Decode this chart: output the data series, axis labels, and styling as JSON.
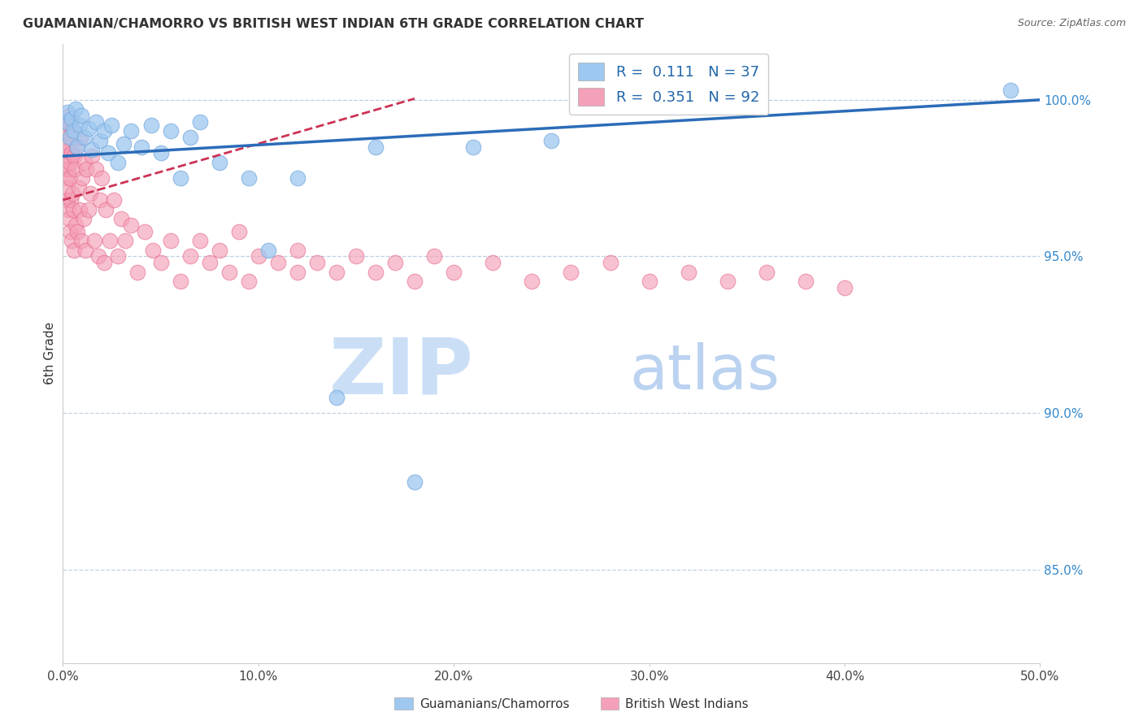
{
  "title": "GUAMANIAN/CHAMORRO VS BRITISH WEST INDIAN 6TH GRADE CORRELATION CHART",
  "source": "Source: ZipAtlas.com",
  "ylabel": "6th Grade",
  "x_min": 0.0,
  "x_max": 50.0,
  "y_min": 82.0,
  "y_max": 101.8,
  "x_ticks": [
    0.0,
    10.0,
    20.0,
    30.0,
    40.0,
    50.0
  ],
  "y_ticks_right": [
    85.0,
    90.0,
    95.0,
    100.0
  ],
  "blue_R": "0.111",
  "blue_N": "37",
  "pink_R": "0.351",
  "pink_N": "92",
  "blue_color": "#9EC8F0",
  "pink_color": "#F4A0B8",
  "blue_edge_color": "#7AABDF",
  "pink_edge_color": "#E87090",
  "blue_line_color": "#2B6CB8",
  "pink_line_color": "#CC3355",
  "blue_scatter_x": [
    0.15,
    0.25,
    0.35,
    0.45,
    0.55,
    0.65,
    0.75,
    0.85,
    0.95,
    1.1,
    1.3,
    1.5,
    1.7,
    1.9,
    2.1,
    2.3,
    2.5,
    2.8,
    3.1,
    3.5,
    4.0,
    4.5,
    5.0,
    5.5,
    6.0,
    6.5,
    7.0,
    8.0,
    9.5,
    10.5,
    12.0,
    14.0,
    16.0,
    18.0,
    48.5,
    21.0,
    25.0
  ],
  "blue_scatter_y": [
    99.3,
    99.6,
    98.8,
    99.4,
    99.0,
    99.7,
    98.5,
    99.2,
    99.5,
    98.8,
    99.1,
    98.4,
    99.3,
    98.7,
    99.0,
    98.3,
    99.2,
    98.0,
    98.6,
    99.0,
    98.5,
    99.2,
    98.3,
    99.0,
    97.5,
    98.8,
    99.3,
    98.0,
    97.5,
    95.2,
    97.5,
    90.5,
    98.5,
    87.8,
    100.3,
    98.5,
    98.7
  ],
  "pink_scatter_x": [
    0.02,
    0.04,
    0.06,
    0.08,
    0.1,
    0.12,
    0.14,
    0.16,
    0.18,
    0.2,
    0.22,
    0.24,
    0.26,
    0.28,
    0.3,
    0.32,
    0.34,
    0.36,
    0.38,
    0.4,
    0.42,
    0.44,
    0.46,
    0.48,
    0.5,
    0.52,
    0.55,
    0.58,
    0.62,
    0.65,
    0.7,
    0.75,
    0.8,
    0.85,
    0.9,
    0.95,
    1.0,
    1.05,
    1.1,
    1.15,
    1.2,
    1.3,
    1.4,
    1.5,
    1.6,
    1.7,
    1.8,
    1.9,
    2.0,
    2.1,
    2.2,
    2.4,
    2.6,
    2.8,
    3.0,
    3.2,
    3.5,
    3.8,
    4.2,
    4.6,
    5.0,
    5.5,
    6.0,
    6.5,
    7.0,
    7.5,
    8.0,
    8.5,
    9.0,
    9.5,
    10.0,
    11.0,
    12.0,
    12.0,
    13.0,
    14.0,
    15.0,
    16.0,
    17.0,
    18.0,
    19.0,
    20.0,
    22.0,
    24.0,
    26.0,
    28.0,
    30.0,
    32.0,
    34.0,
    36.0,
    38.0,
    40.0
  ],
  "pink_scatter_y": [
    99.0,
    98.5,
    99.2,
    97.8,
    98.8,
    99.3,
    97.5,
    98.2,
    96.8,
    99.0,
    97.2,
    98.5,
    96.5,
    97.8,
    99.5,
    96.2,
    98.0,
    97.5,
    95.8,
    99.2,
    96.8,
    98.3,
    95.5,
    97.0,
    99.0,
    96.5,
    98.2,
    95.2,
    97.8,
    96.0,
    98.5,
    95.8,
    97.2,
    96.5,
    98.8,
    95.5,
    97.5,
    96.2,
    98.0,
    95.2,
    97.8,
    96.5,
    97.0,
    98.2,
    95.5,
    97.8,
    95.0,
    96.8,
    97.5,
    94.8,
    96.5,
    95.5,
    96.8,
    95.0,
    96.2,
    95.5,
    96.0,
    94.5,
    95.8,
    95.2,
    94.8,
    95.5,
    94.2,
    95.0,
    95.5,
    94.8,
    95.2,
    94.5,
    95.8,
    94.2,
    95.0,
    94.8,
    95.2,
    94.5,
    94.8,
    94.5,
    95.0,
    94.5,
    94.8,
    94.2,
    95.0,
    94.5,
    94.8,
    94.2,
    94.5,
    94.8,
    94.2,
    94.5,
    94.2,
    94.5,
    94.2,
    94.0
  ]
}
